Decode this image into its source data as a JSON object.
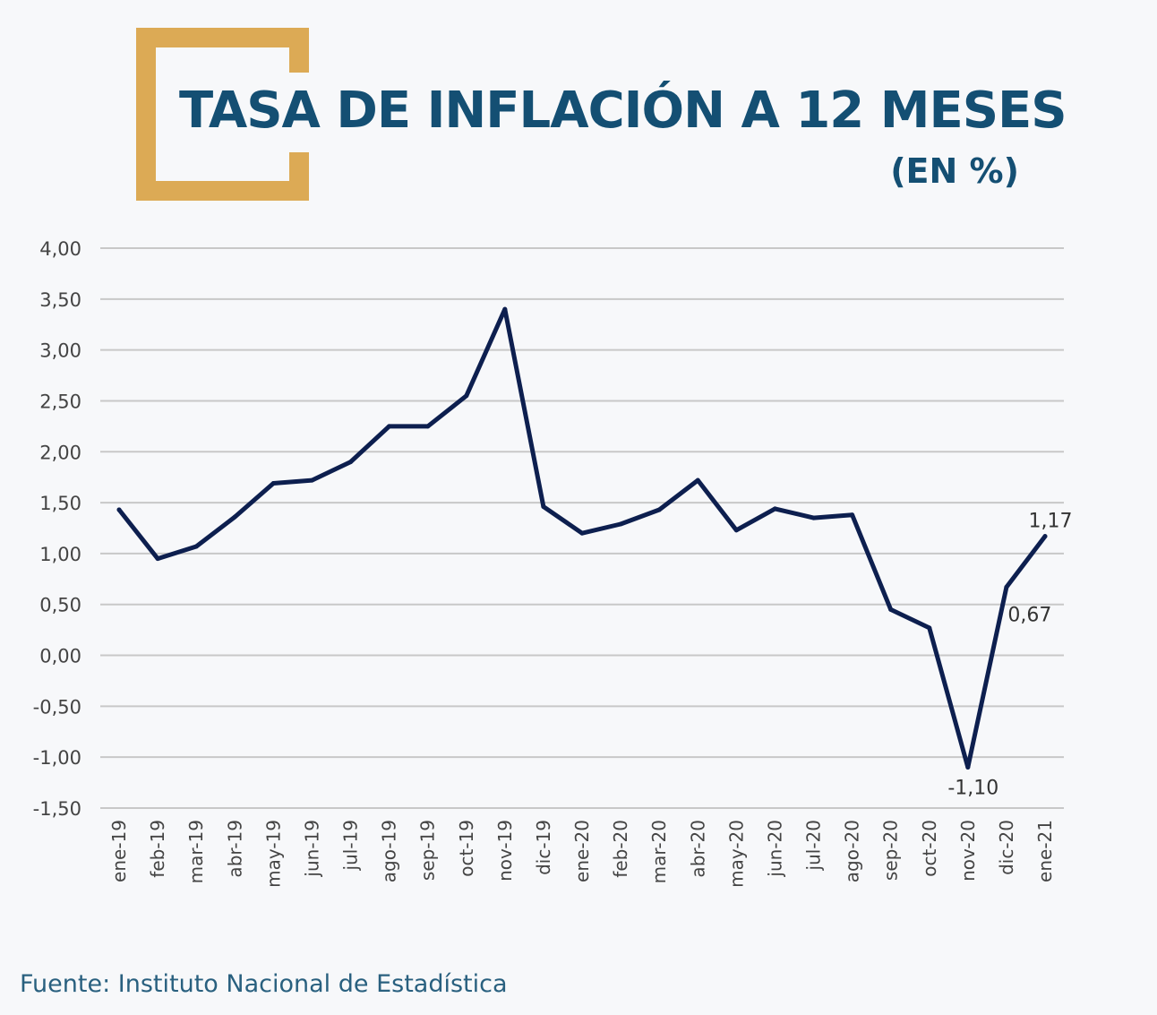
{
  "header": {
    "title": "TASA DE INFLACIÓN A 12 MESES",
    "subtitle": "(EN %)"
  },
  "colors": {
    "accent": "#dcaa55",
    "title": "#144f73",
    "line": "#0d1f4f",
    "grid": "#c8c8c8",
    "axis_text": "#444444"
  },
  "chart_data": {
    "type": "line",
    "title": "TASA DE INFLACIÓN A 12 MESES",
    "subtitle": "(EN %)",
    "xlabel": "",
    "ylabel": "",
    "ylim": [
      -1.5,
      4.0
    ],
    "y_ticks": [
      "4,00",
      "3,50",
      "3,00",
      "2,50",
      "2,00",
      "1,50",
      "1,00",
      "0,50",
      "0,00",
      "-0,50",
      "-1,00",
      "-1,50"
    ],
    "y_tick_values": [
      4.0,
      3.5,
      3.0,
      2.5,
      2.0,
      1.5,
      1.0,
      0.5,
      0.0,
      -0.5,
      -1.0,
      -1.5
    ],
    "grid": true,
    "categories": [
      "ene-19",
      "feb-19",
      "mar-19",
      "abr-19",
      "may-19",
      "jun-19",
      "jul-19",
      "ago-19",
      "sep-19",
      "oct-19",
      "nov-19",
      "dic-19",
      "ene-20",
      "feb-20",
      "mar-20",
      "abr-20",
      "may-20",
      "jun-20",
      "jul-20",
      "ago-20",
      "sep-20",
      "oct-20",
      "nov-20",
      "dic-20",
      "ene-21"
    ],
    "series": [
      {
        "name": "Tasa de inflación a 12 meses",
        "values": [
          1.43,
          0.95,
          1.07,
          1.36,
          1.69,
          1.72,
          1.9,
          2.25,
          2.25,
          2.55,
          3.4,
          1.46,
          1.2,
          1.29,
          1.43,
          1.72,
          1.23,
          1.44,
          1.35,
          1.38,
          0.45,
          0.27,
          -1.1,
          0.67,
          1.17
        ]
      }
    ],
    "annotations": [
      {
        "category": "ene-21",
        "text": "1,17",
        "position": "above"
      },
      {
        "category": "dic-20",
        "text": "0,67",
        "position": "below-right"
      },
      {
        "category": "nov-20",
        "text": "-1,10",
        "position": "below"
      }
    ]
  },
  "footer": {
    "source": "Fuente: Instituto Nacional de Estadística"
  }
}
